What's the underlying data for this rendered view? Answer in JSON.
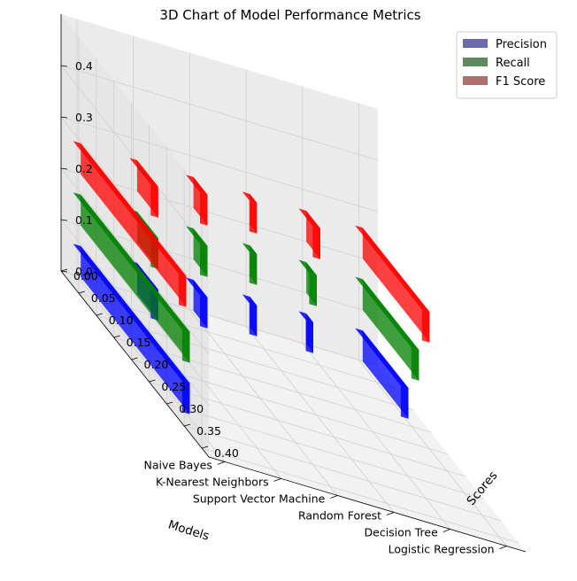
{
  "chart_data": {
    "type": "bar3d",
    "title": "3D Chart of Model Performance Metrics",
    "xlabel": "Models",
    "ylabel": "Scores",
    "zlabel": "",
    "models": [
      "Logistic Regression",
      "Decision Tree",
      "Random Forest",
      "Support Vector Machine",
      "K-Nearest Neighbors",
      "Naive Bayes"
    ],
    "y_ticks": [
      "0.00",
      "0.05",
      "0.10",
      "0.15",
      "0.20",
      "0.25",
      "0.30",
      "0.35",
      "0.40"
    ],
    "z_ticks": [
      "0.0",
      "0.1",
      "0.2",
      "0.3",
      "0.4"
    ],
    "zlim": [
      0,
      0.5
    ],
    "legend_position": "top-right",
    "series": [
      {
        "name": "Precision",
        "color": "#0000ff",
        "legend_color": "#6a6aaa",
        "values": [
          0.13,
          0.02,
          0.02,
          0.04,
          0.06,
          0.31
        ]
      },
      {
        "name": "Recall",
        "color": "#008000",
        "legend_color": "#5f8a5f",
        "values": [
          0.16,
          0.03,
          0.02,
          0.04,
          0.06,
          0.31
        ]
      },
      {
        "name": "F1 Score",
        "color": "#ff0000",
        "legend_color": "#b06f6f",
        "values": [
          0.19,
          0.04,
          0.02,
          0.04,
          0.06,
          0.3
        ]
      }
    ]
  }
}
